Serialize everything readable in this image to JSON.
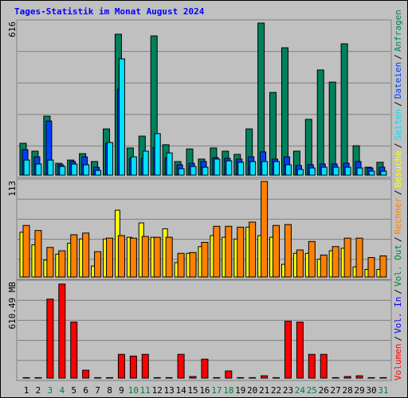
{
  "chart_data": {
    "type": "bar",
    "title": "Tages-Statistik im Monat August 2024",
    "title_color": "#0000ff",
    "categories": [
      "1",
      "2",
      "3",
      "4",
      "5",
      "6",
      "7",
      "8",
      "9",
      "10",
      "11",
      "12",
      "13",
      "14",
      "15",
      "16",
      "17",
      "18",
      "19",
      "20",
      "21",
      "22",
      "23",
      "24",
      "25",
      "26",
      "27",
      "28",
      "29",
      "30",
      "31"
    ],
    "weekend": [
      2,
      3,
      9,
      10,
      16,
      17,
      23,
      24,
      30
    ],
    "weekend_color": "#008040",
    "legend_separator": "/",
    "legend_extra": [
      {
        "name": "Vol. In",
        "color": "#0000ff"
      },
      {
        "name": "Vol. Out",
        "color": "#008040"
      }
    ],
    "panels": [
      {
        "ylim": [
          0,
          616
        ],
        "yticks": [
          616
        ],
        "series": [
          {
            "name": "Anfragen",
            "color": "#00805c",
            "values": [
              129,
              97,
              239,
              48,
              61,
              87,
              55,
              187,
              571,
              110,
              158,
              564,
              123,
              55,
              106,
              65,
              110,
              97,
              84,
              187,
              616,
              335,
              516,
              97,
              226,
              426,
              377,
              532,
              119,
              32,
              52
            ]
          },
          {
            "name": "Dateien",
            "color": "#0040ff",
            "values": [
              103,
              74,
              219,
              42,
              55,
              74,
              32,
              129,
              348,
              68,
              68,
              113,
              71,
              42,
              48,
              55,
              71,
              68,
              65,
              74,
              94,
              65,
              74,
              39,
              42,
              45,
              45,
              48,
              55,
              29,
              32
            ]
          },
          {
            "name": "Seiten",
            "color": "#00e0ff",
            "values": [
              61,
              45,
              61,
              35,
              45,
              42,
              19,
              132,
              471,
              74,
              97,
              168,
              90,
              26,
              35,
              32,
              65,
              58,
              52,
              55,
              55,
              55,
              42,
              23,
              29,
              32,
              32,
              32,
              29,
              16,
              16
            ]
          }
        ]
      },
      {
        "ylim": [
          0,
          113
        ],
        "yticks": [
          113
        ],
        "series": [
          {
            "name": "Besuche",
            "color": "#ffff00",
            "values": [
              53,
              38,
              20,
              27,
              40,
              45,
              13,
              45,
              79,
              47,
              64,
              47,
              57,
              17,
              28,
              36,
              49,
              47,
              45,
              59,
              49,
              47,
              15,
              28,
              28,
              21,
              31,
              34,
              12,
              9,
              9
            ]
          },
          {
            "name": "Rechner",
            "color": "#ff8000",
            "values": [
              61,
              55,
              35,
              31,
              50,
              52,
              30,
              46,
              49,
              46,
              48,
              47,
              47,
              28,
              29,
              41,
              60,
              60,
              59,
              65,
              113,
              61,
              62,
              32,
              42,
              26,
              36,
              46,
              46,
              23,
              25
            ]
          }
        ]
      },
      {
        "ylim": [
          0,
          610.49
        ],
        "yticks": [
          {
            "value": 610.49,
            "label": "610.49 MB"
          }
        ],
        "series": [
          {
            "name": "Volumen",
            "color": "#ff0000",
            "values": [
              3,
              3,
              509,
              606,
              361,
              51,
              3,
              3,
              153,
              142,
              153,
              3,
              3,
              153,
              10,
              122,
              3,
              46,
              3,
              3,
              15,
              3,
              366,
              361,
              153,
              153,
              3,
              10,
              15,
              3,
              3
            ]
          }
        ]
      }
    ]
  }
}
